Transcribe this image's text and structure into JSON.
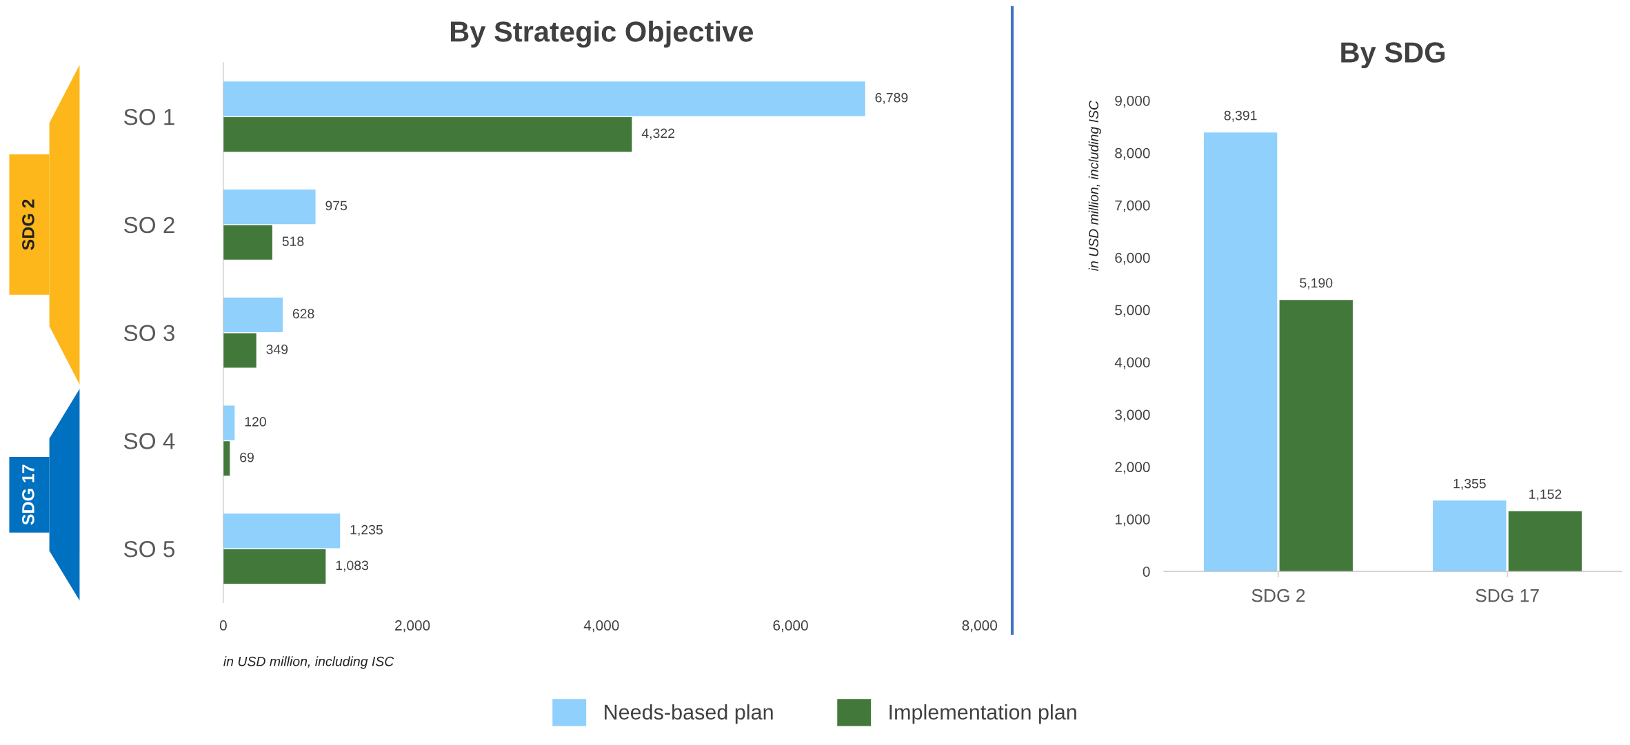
{
  "chart_data": [
    {
      "type": "bar",
      "title": "By Strategic Objective",
      "xlabel": "in USD million, including ISC",
      "orientation": "horizontal",
      "categories": [
        "SO 1",
        "SO 2",
        "SO 3",
        "SO 4",
        "SO 5"
      ],
      "series": [
        {
          "name": "Needs-based plan",
          "color": "#8fd0fd",
          "values": [
            6789,
            975,
            628,
            120,
            1235
          ]
        },
        {
          "name": "Implementation plan",
          "color": "#43783b",
          "values": [
            4322,
            518,
            349,
            69,
            1083
          ]
        }
      ],
      "xlim": [
        0,
        8000
      ],
      "xticks": [
        {
          "value": 0,
          "label": "0"
        },
        {
          "value": 2000,
          "label": "2,000"
        },
        {
          "value": 4000,
          "label": "4,000"
        },
        {
          "value": 6000,
          "label": "6,000"
        },
        {
          "value": 8000,
          "label": "8,000"
        }
      ],
      "value_labels": [
        [
          "6,789",
          "975",
          "628",
          "120",
          "1,235"
        ],
        [
          "4,322",
          "518",
          "349",
          "69",
          "1,083"
        ]
      ],
      "annotations": [
        "SDG 2",
        "SDG 17"
      ],
      "legend": "bottom",
      "grid": false
    },
    {
      "type": "bar",
      "title": "By SDG",
      "ylabel": "in USD million, including ISC",
      "categories": [
        "SDG 2",
        "SDG 17"
      ],
      "series": [
        {
          "color": "#8fd0fd",
          "values": [
            8391,
            1355
          ]
        },
        {
          "color": "#43783b",
          "values": [
            5190,
            1152
          ]
        }
      ],
      "ylim": [
        0,
        9000
      ],
      "yticks": [
        {
          "value": 0,
          "label": "0"
        },
        {
          "value": 1000,
          "label": "1,000"
        },
        {
          "value": 2000,
          "label": "2,000"
        },
        {
          "value": 3000,
          "label": "3,000"
        },
        {
          "value": 4000,
          "label": "4,000"
        },
        {
          "value": 5000,
          "label": "5,000"
        },
        {
          "value": 6000,
          "label": "6,000"
        },
        {
          "value": 7000,
          "label": "7,000"
        },
        {
          "value": 8000,
          "label": "8,000"
        },
        {
          "value": 9000,
          "label": "9,000"
        }
      ],
      "value_labels": [
        [
          "8,391",
          "1,355"
        ],
        [
          "5,190",
          "1,152"
        ]
      ],
      "grid": false
    }
  ]
}
